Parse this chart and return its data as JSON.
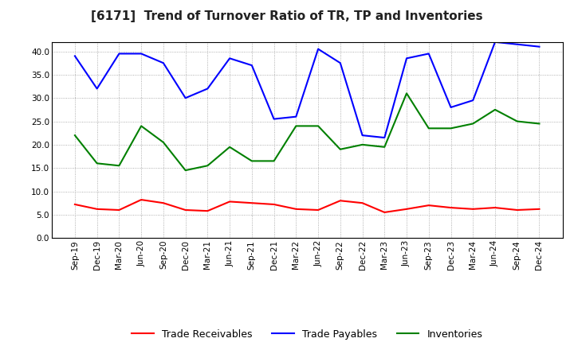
{
  "title": "[6171]  Trend of Turnover Ratio of TR, TP and Inventories",
  "x_labels": [
    "Sep-19",
    "Dec-19",
    "Mar-20",
    "Jun-20",
    "Sep-20",
    "Dec-20",
    "Mar-21",
    "Jun-21",
    "Sep-21",
    "Dec-21",
    "Mar-22",
    "Jun-22",
    "Sep-22",
    "Dec-22",
    "Mar-23",
    "Jun-23",
    "Sep-23",
    "Dec-23",
    "Mar-24",
    "Jun-24",
    "Sep-24",
    "Dec-24"
  ],
  "trade_receivables": [
    7.2,
    6.2,
    6.0,
    8.2,
    7.5,
    6.0,
    5.8,
    7.8,
    7.5,
    7.2,
    6.2,
    6.0,
    8.0,
    7.5,
    5.5,
    6.2,
    7.0,
    6.5,
    6.2,
    6.5,
    6.0,
    6.2
  ],
  "trade_payables": [
    39.0,
    32.0,
    39.5,
    39.5,
    37.5,
    30.0,
    32.0,
    38.5,
    37.0,
    25.5,
    26.0,
    40.5,
    37.5,
    22.0,
    21.5,
    38.5,
    39.5,
    28.0,
    29.5,
    42.0,
    41.5,
    41.0
  ],
  "inventories": [
    22.0,
    16.0,
    15.5,
    24.0,
    20.5,
    14.5,
    15.5,
    19.5,
    16.5,
    16.5,
    24.0,
    24.0,
    19.0,
    20.0,
    19.5,
    31.0,
    23.5,
    23.5,
    24.5,
    27.5,
    25.0,
    24.5
  ],
  "tr_color": "#ff0000",
  "tp_color": "#0000ff",
  "inv_color": "#008000",
  "ylim": [
    0.0,
    42.0
  ],
  "yticks": [
    0.0,
    5.0,
    10.0,
    15.0,
    20.0,
    25.0,
    30.0,
    35.0,
    40.0
  ],
  "legend_labels": [
    "Trade Receivables",
    "Trade Payables",
    "Inventories"
  ],
  "background_color": "#ffffff",
  "plot_bg_color": "#ffffff",
  "grid_color": "#999999",
  "title_fontsize": 11,
  "tick_fontsize": 7.5,
  "legend_fontsize": 9
}
